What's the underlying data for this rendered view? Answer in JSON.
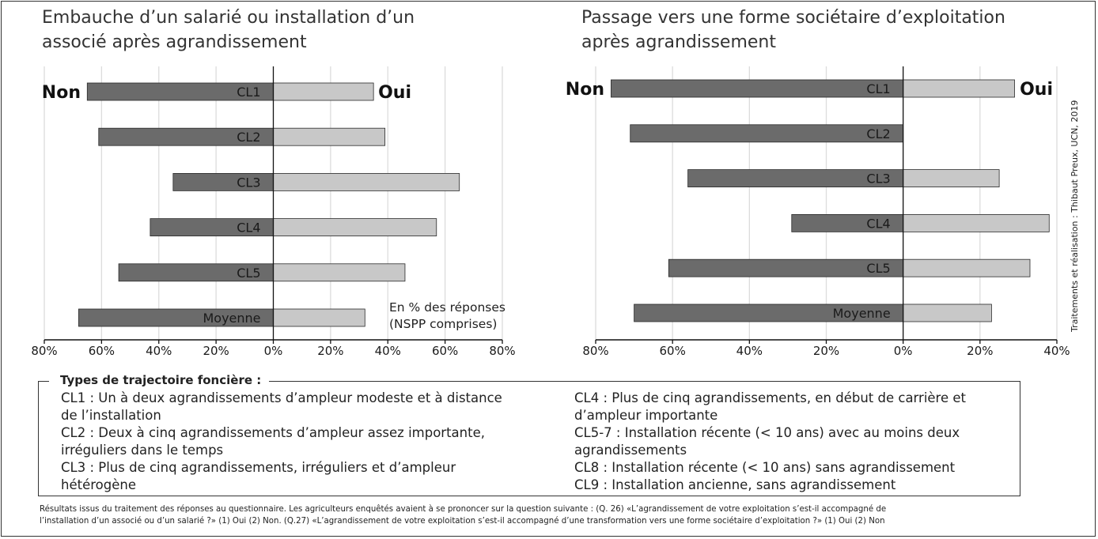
{
  "chart_data": [
    {
      "type": "bar",
      "orientation": "horizontal-diverging",
      "title": "Embauche d’un salarié ou installation d’un associé après agrandissement",
      "title_lines": [
        "Embauche d’un salarié ou installation d’un",
        "associé après agrandissement"
      ],
      "categories": [
        "CL1",
        "CL2",
        "CL3",
        "CL4",
        "CL5",
        "Moyenne"
      ],
      "series": [
        {
          "name": "Non",
          "color": "#6b6b6b",
          "values": [
            65,
            61,
            35,
            43,
            54,
            68
          ]
        },
        {
          "name": "Oui",
          "color": "#c8c8c8",
          "values": [
            35,
            39,
            65,
            57,
            46,
            32
          ]
        }
      ],
      "xlim": [
        -80,
        80
      ],
      "xticks": [
        -80,
        -60,
        -40,
        -20,
        0,
        20,
        40,
        60,
        80
      ],
      "tick_labels": [
        "80%",
        "60%",
        "40%",
        "20%",
        "0%",
        "20%",
        "40%",
        "60%",
        "80%"
      ],
      "grid": true,
      "annotation_lines": [
        "En % des réponses",
        "(NSPP comprises)"
      ]
    },
    {
      "type": "bar",
      "orientation": "horizontal-diverging",
      "title": "Passage vers une forme sociétaire d’exploitation après agrandissement",
      "title_lines": [
        "Passage vers une forme sociétaire d’exploitation",
        "après agrandissement"
      ],
      "categories": [
        "CL1",
        "CL2",
        "CL3",
        "CL4",
        "CL5",
        "Moyenne"
      ],
      "series": [
        {
          "name": "Non",
          "color": "#6b6b6b",
          "values": [
            76,
            71,
            56,
            29,
            61,
            70
          ]
        },
        {
          "name": "Oui",
          "color": "#c8c8c8",
          "values": [
            29,
            0,
            25,
            38,
            33,
            23
          ]
        }
      ],
      "xlim": [
        -80,
        40
      ],
      "xticks": [
        -80,
        -60,
        -40,
        -20,
        0,
        20,
        40
      ],
      "tick_labels": [
        "80%",
        "60%",
        "40%",
        "20%",
        "0%",
        "20%",
        "40%"
      ],
      "grid": true
    }
  ],
  "legend": {
    "title": "Types de trajectoire foncière :",
    "left": [
      "CL1 : Un à deux agrandissements d’ampleur modeste et à distance",
      "de l’installation",
      "CL2 : Deux à cinq agrandissements d’ampleur assez importante,",
      "irréguliers dans le temps",
      "CL3 : Plus de cinq agrandissements, irréguliers et d’ampleur",
      "hétérogène"
    ],
    "right": [
      "CL4 : Plus de cinq agrandissements, en début de carrière et",
      "d’ampleur importante",
      "CL5-7 : Installation récente (< 10 ans) avec au moins deux",
      "agrandissements",
      "CL8 : Installation récente (< 10 ans) sans agrandissement",
      "CL9 : Installation ancienne, sans agrandissement"
    ]
  },
  "note_lines": [
    "Résultats issus du traitement des réponses au questionnaire. Les agriculteurs enquêtés avaient à se prononcer sur la question suivante : (Q. 26) «L’agrandissement de votre exploitation s’est-il accompagné de",
    "l’installation d’un associé ou d’un salarié ?» (1) Oui (2) Non. (Q.27) «L’agrandissement de votre exploitation s’est-il accompagné d’une transformation vers une forme sociétaire d’exploitation ?» (1) Oui (2) Non"
  ],
  "credit": "Traitements et réalisation : Thibaut Preux, UCN, 2019"
}
